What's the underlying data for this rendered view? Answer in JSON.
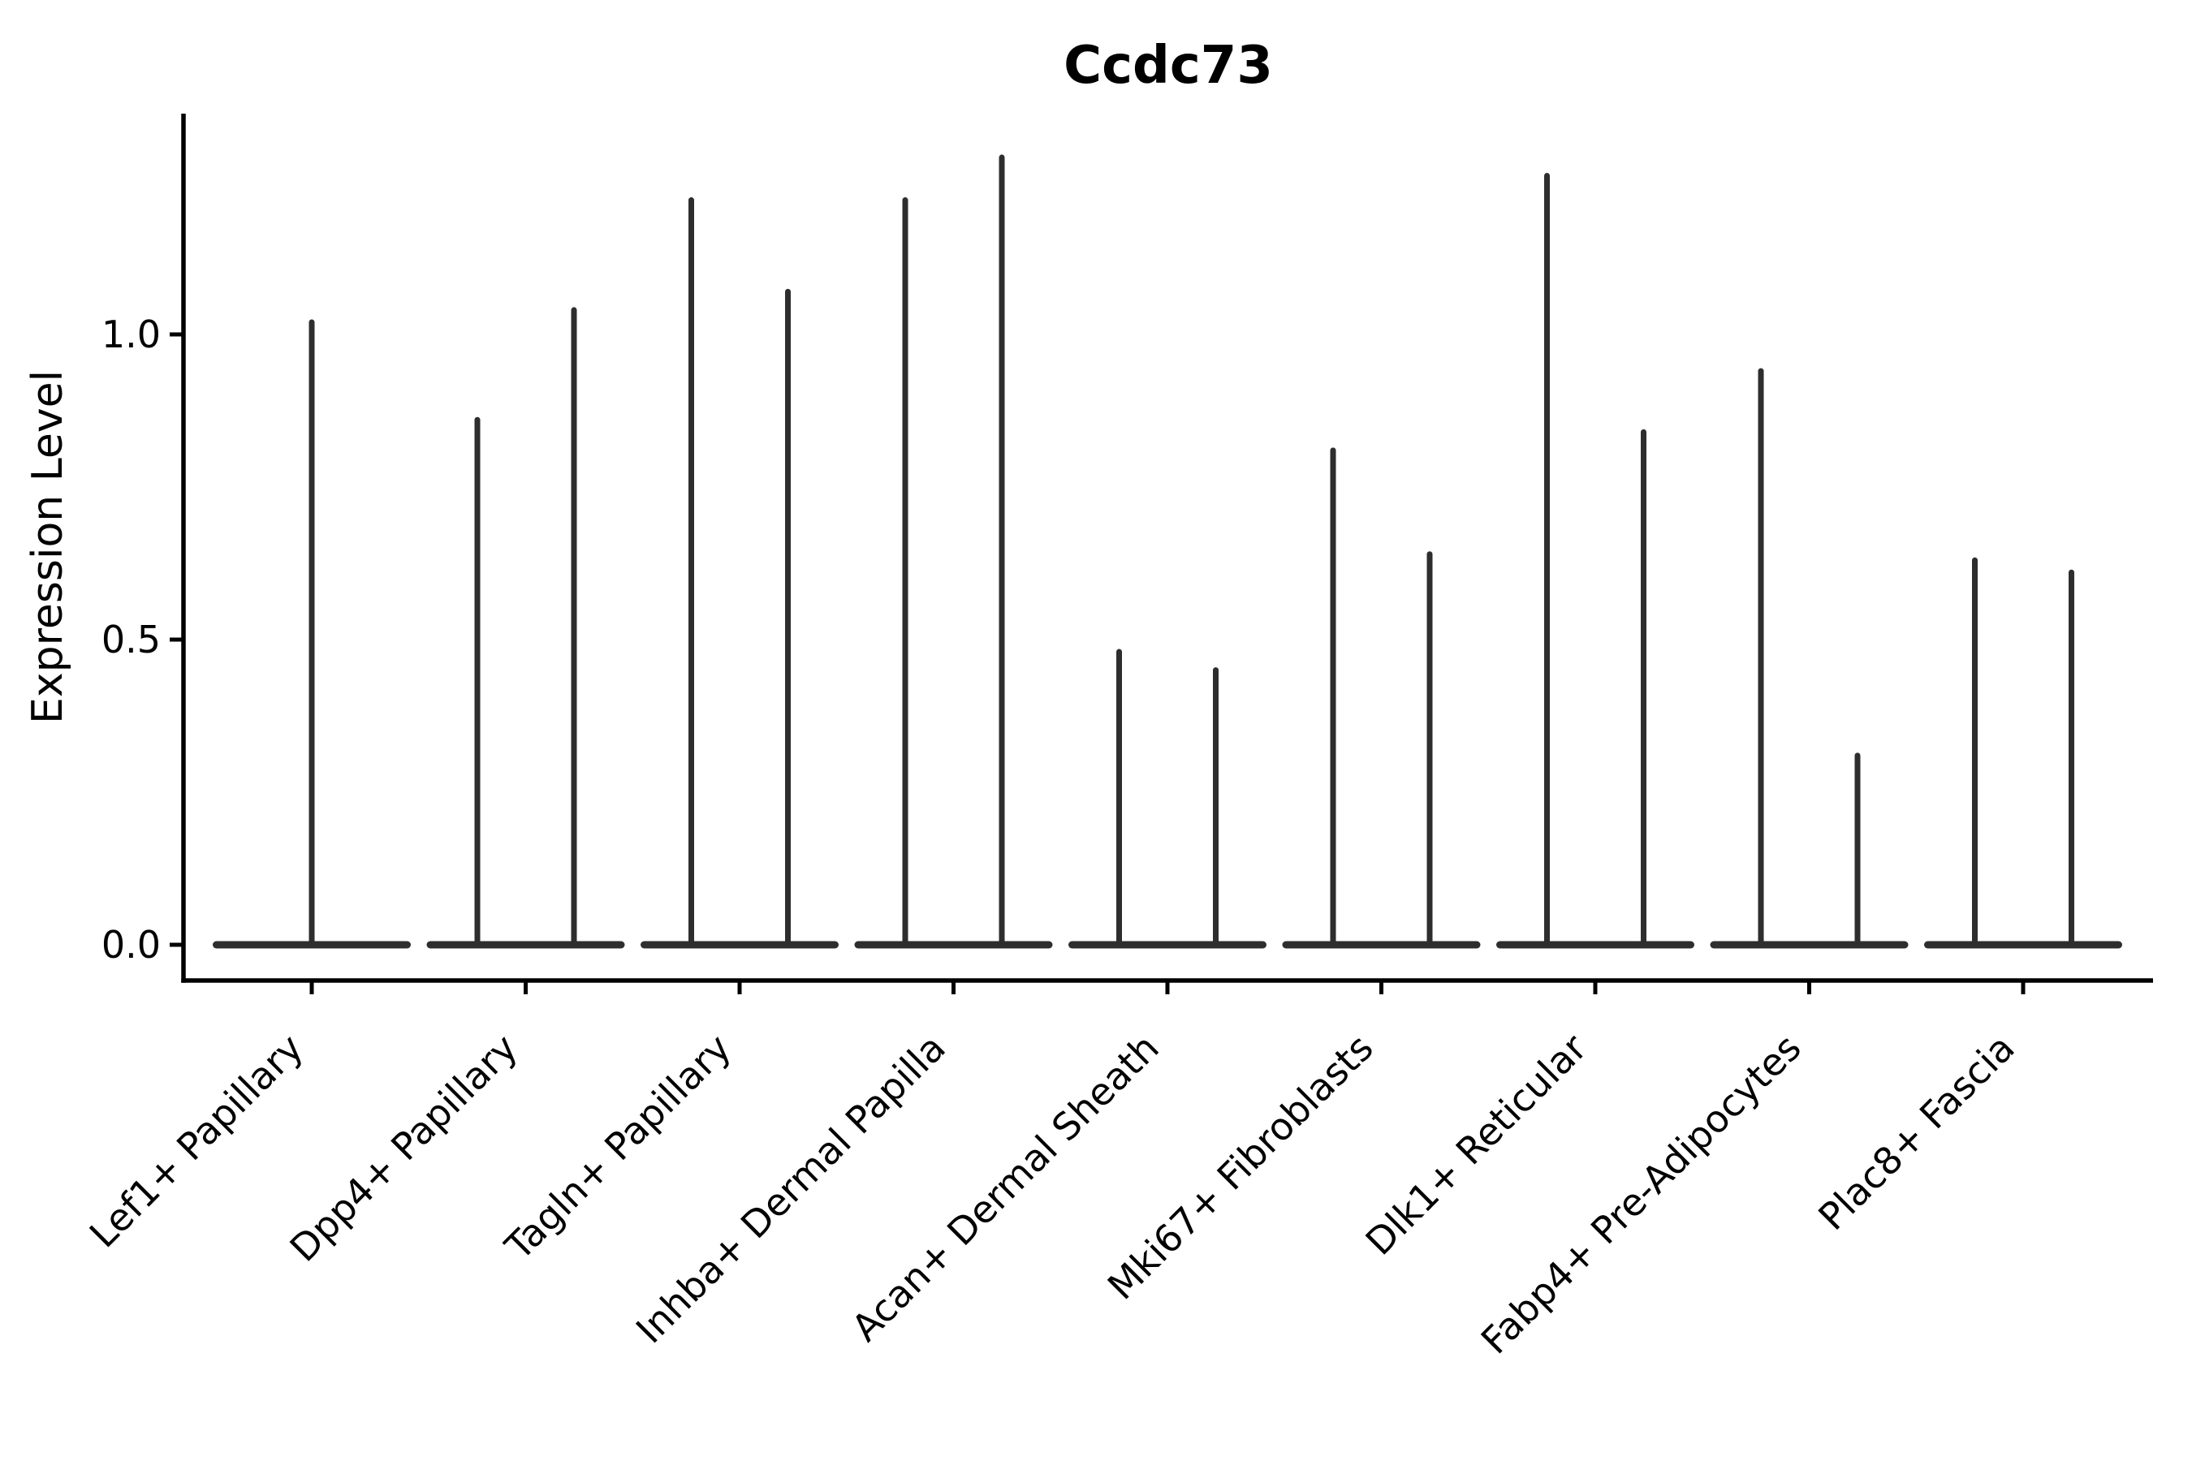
{
  "chart_data": {
    "type": "violin",
    "title": "Ccdc73",
    "ylabel": "Expression Level",
    "xlabel": "",
    "ytick_labels": [
      "0.0",
      "0.5",
      "1.0"
    ],
    "ytick_values": [
      0.0,
      0.5,
      1.0
    ],
    "ylim": [
      -0.06,
      1.36
    ],
    "grid": false,
    "legend": "none",
    "x_tick_label_rotation_deg": 45,
    "violin_shape_note": "zero-inflated violins: wide flat lens at expression 0 with a single thin density spike rising to the max expression value",
    "colors": {
      "violin": "#2e2e2e",
      "axis": "#000000",
      "text": "#000000",
      "background": "#ffffff"
    },
    "groups": [
      {
        "label": "Lef1+ Papillary",
        "violin_maxima": [
          1.02
        ]
      },
      {
        "label": "Dpp4+ Papillary",
        "violin_maxima": [
          0.86,
          1.04
        ]
      },
      {
        "label": "Tagln+ Papillary",
        "violin_maxima": [
          1.22,
          1.07
        ]
      },
      {
        "label": "Inhba+ Dermal Papilla",
        "violin_maxima": [
          1.22,
          1.29
        ]
      },
      {
        "label": "Acan+ Dermal Sheath",
        "violin_maxima": [
          0.48,
          0.45
        ]
      },
      {
        "label": "Mki67+ Fibroblasts",
        "violin_maxima": [
          0.81,
          0.64
        ]
      },
      {
        "label": "Dlk1+ Reticular",
        "violin_maxima": [
          1.26,
          0.84
        ]
      },
      {
        "label": "Fabp4+ Pre-Adipocytes",
        "violin_maxima": [
          0.94,
          0.31
        ]
      },
      {
        "label": "Plac8+ Fascia",
        "violin_maxima": [
          0.63,
          0.61
        ]
      }
    ]
  }
}
